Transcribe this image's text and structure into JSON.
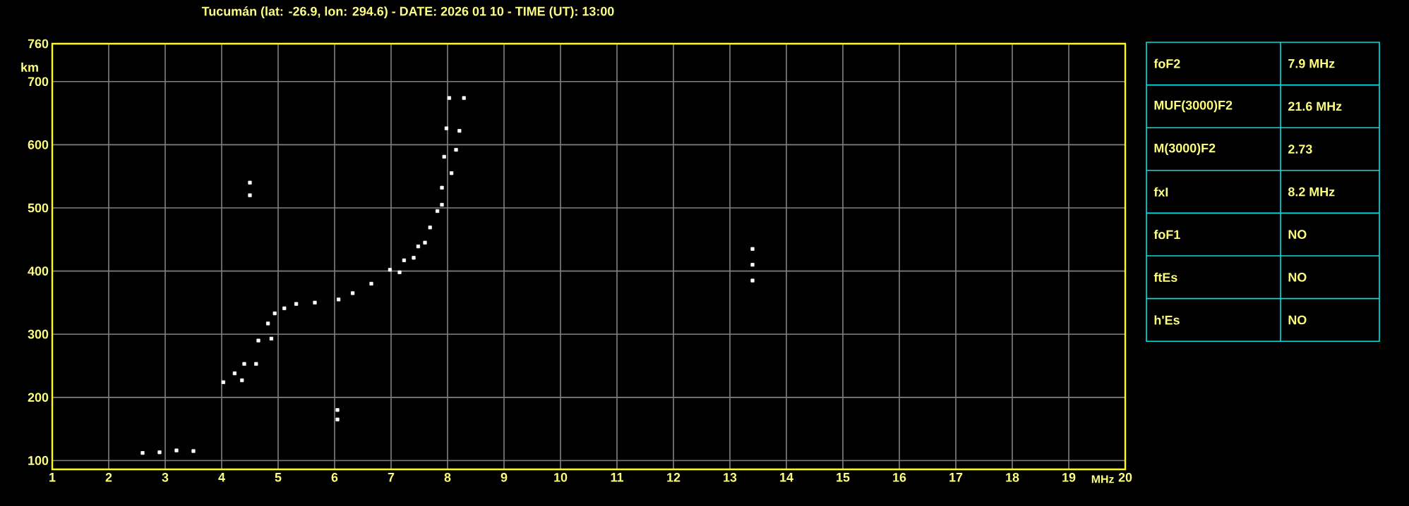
{
  "chart_data": [
    {
      "type": "scatter",
      "title": "Tucumán (lat: -26.9, lon: 294.6) - DATE: 2026 01 10 - TIME (UT): 13:00",
      "xlabel": "MHz",
      "ylabel": "km",
      "xlim": [
        1,
        20
      ],
      "ylim": [
        86,
        760
      ],
      "xticks": [
        1,
        2,
        3,
        4,
        5,
        6,
        7,
        8,
        9,
        10,
        11,
        12,
        13,
        14,
        15,
        16,
        17,
        18,
        19,
        20
      ],
      "yticks": [
        100,
        200,
        300,
        400,
        500,
        600,
        700,
        760
      ],
      "grid": true,
      "marker": "square",
      "series": [
        {
          "color": "#ffffff",
          "x": [
            4.03,
            4.23,
            4.4,
            4.65,
            4.82,
            4.94,
            5.11,
            5.32,
            5.65,
            6.07,
            6.32,
            6.65,
            6.98,
            7.23,
            7.48,
            7.69,
            7.82,
            7.9,
            7.94,
            7.98,
            8.03
          ],
          "values": [
            224,
            238,
            253,
            290,
            317,
            333,
            341,
            348,
            350,
            355,
            365,
            380,
            402,
            417,
            439,
            469,
            495,
            532,
            581,
            626,
            674
          ]
        },
        {
          "color": "#ffffff",
          "x": [
            4.36,
            4.61,
            4.88,
            7.15,
            7.4,
            7.6,
            7.9,
            8.07,
            8.15,
            8.21,
            8.29
          ],
          "values": [
            227,
            253,
            293,
            398,
            421,
            445,
            505,
            555,
            592,
            622,
            674
          ]
        },
        {
          "color": "#ffffff",
          "x": [
            2.6,
            2.9,
            3.2,
            3.5,
            4.5,
            4.5,
            6.05,
            6.05,
            13.4,
            13.4,
            13.4
          ],
          "values": [
            112,
            113,
            116,
            115,
            520,
            540,
            165,
            180,
            385,
            410,
            435
          ]
        }
      ]
    },
    {
      "type": "other",
      "annotations": [
        "foF2",
        "7.9 MHz",
        "MUF(3000)F2",
        "21.6 MHz",
        "M(3000)F2",
        "2.73",
        "fxI",
        "8.2 MHz",
        "foF1",
        "NO",
        "ftEs",
        "NO",
        "h'Es",
        "NO"
      ]
    }
  ]
}
